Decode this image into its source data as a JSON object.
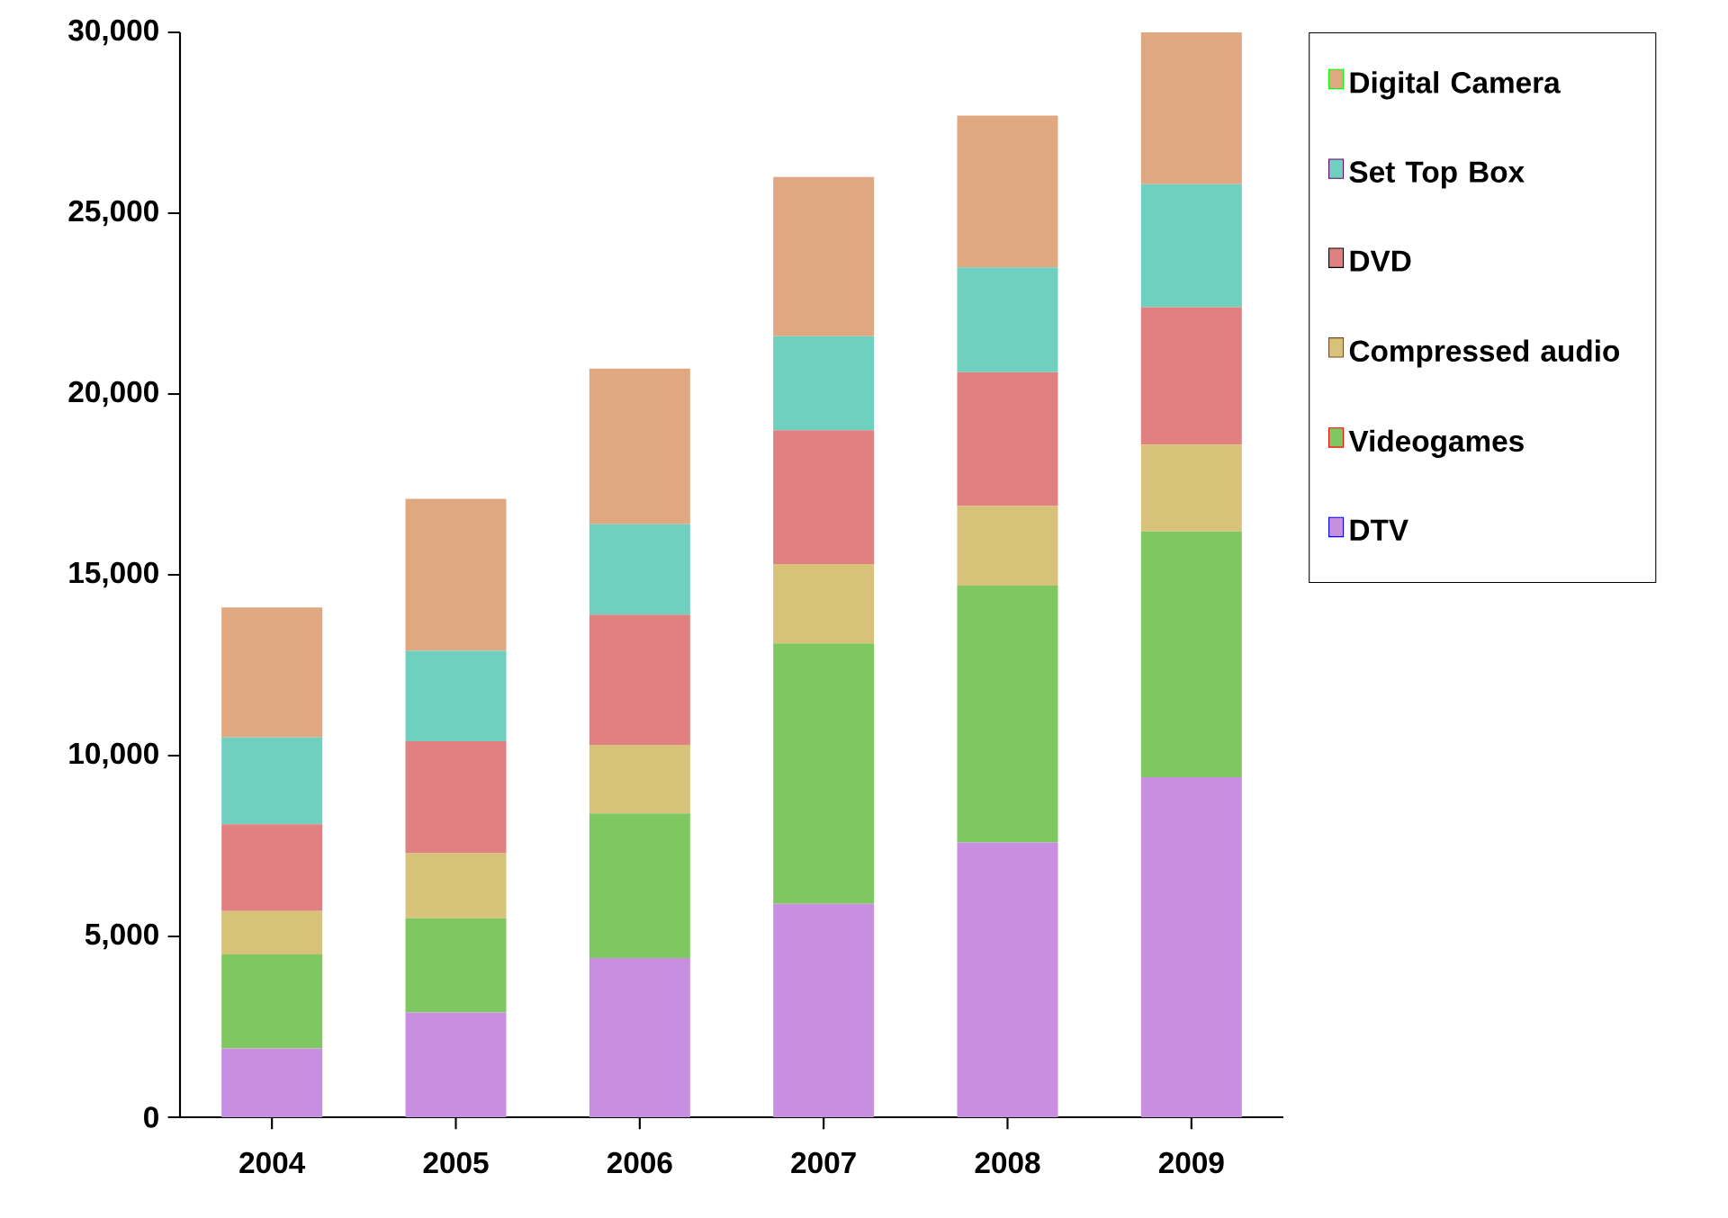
{
  "chart_data": {
    "type": "bar",
    "stacked": true,
    "categories": [
      "2004",
      "2005",
      "2006",
      "2007",
      "2008",
      "2009"
    ],
    "series": [
      {
        "name": "DTV",
        "color": "#c88ee0",
        "values": [
          1900,
          2900,
          4400,
          5900,
          7600,
          9400
        ]
      },
      {
        "name": "Videogames",
        "color": "#7fc861",
        "values": [
          2600,
          2600,
          4000,
          7200,
          7100,
          6800
        ]
      },
      {
        "name": "Compressed audio",
        "color": "#d8c27a",
        "values": [
          1200,
          1800,
          1900,
          2200,
          2200,
          2400
        ]
      },
      {
        "name": "DVD",
        "color": "#e08080",
        "values": [
          2400,
          3100,
          3600,
          3700,
          3700,
          3800
        ]
      },
      {
        "name": "Set Top Box",
        "color": "#6fd0c0",
        "values": [
          2400,
          2500,
          2500,
          2600,
          2900,
          3400
        ]
      },
      {
        "name": "Digital Camera",
        "color": "#e0a880",
        "values": [
          3600,
          4200,
          4300,
          4400,
          4200,
          4200
        ]
      }
    ],
    "ylim": [
      0,
      30000
    ],
    "yticks": [
      0,
      {
        "value": 5000,
        "label": "5,000"
      },
      {
        "value": 10000,
        "label": "10,000"
      },
      {
        "value": 15000,
        "label": "15,000"
      },
      {
        "value": 20000,
        "label": "20,000"
      },
      {
        "value": 25000,
        "label": "25,000"
      },
      {
        "value": 30000,
        "label": "30,000"
      }
    ],
    "grid": false,
    "legend": "right"
  }
}
